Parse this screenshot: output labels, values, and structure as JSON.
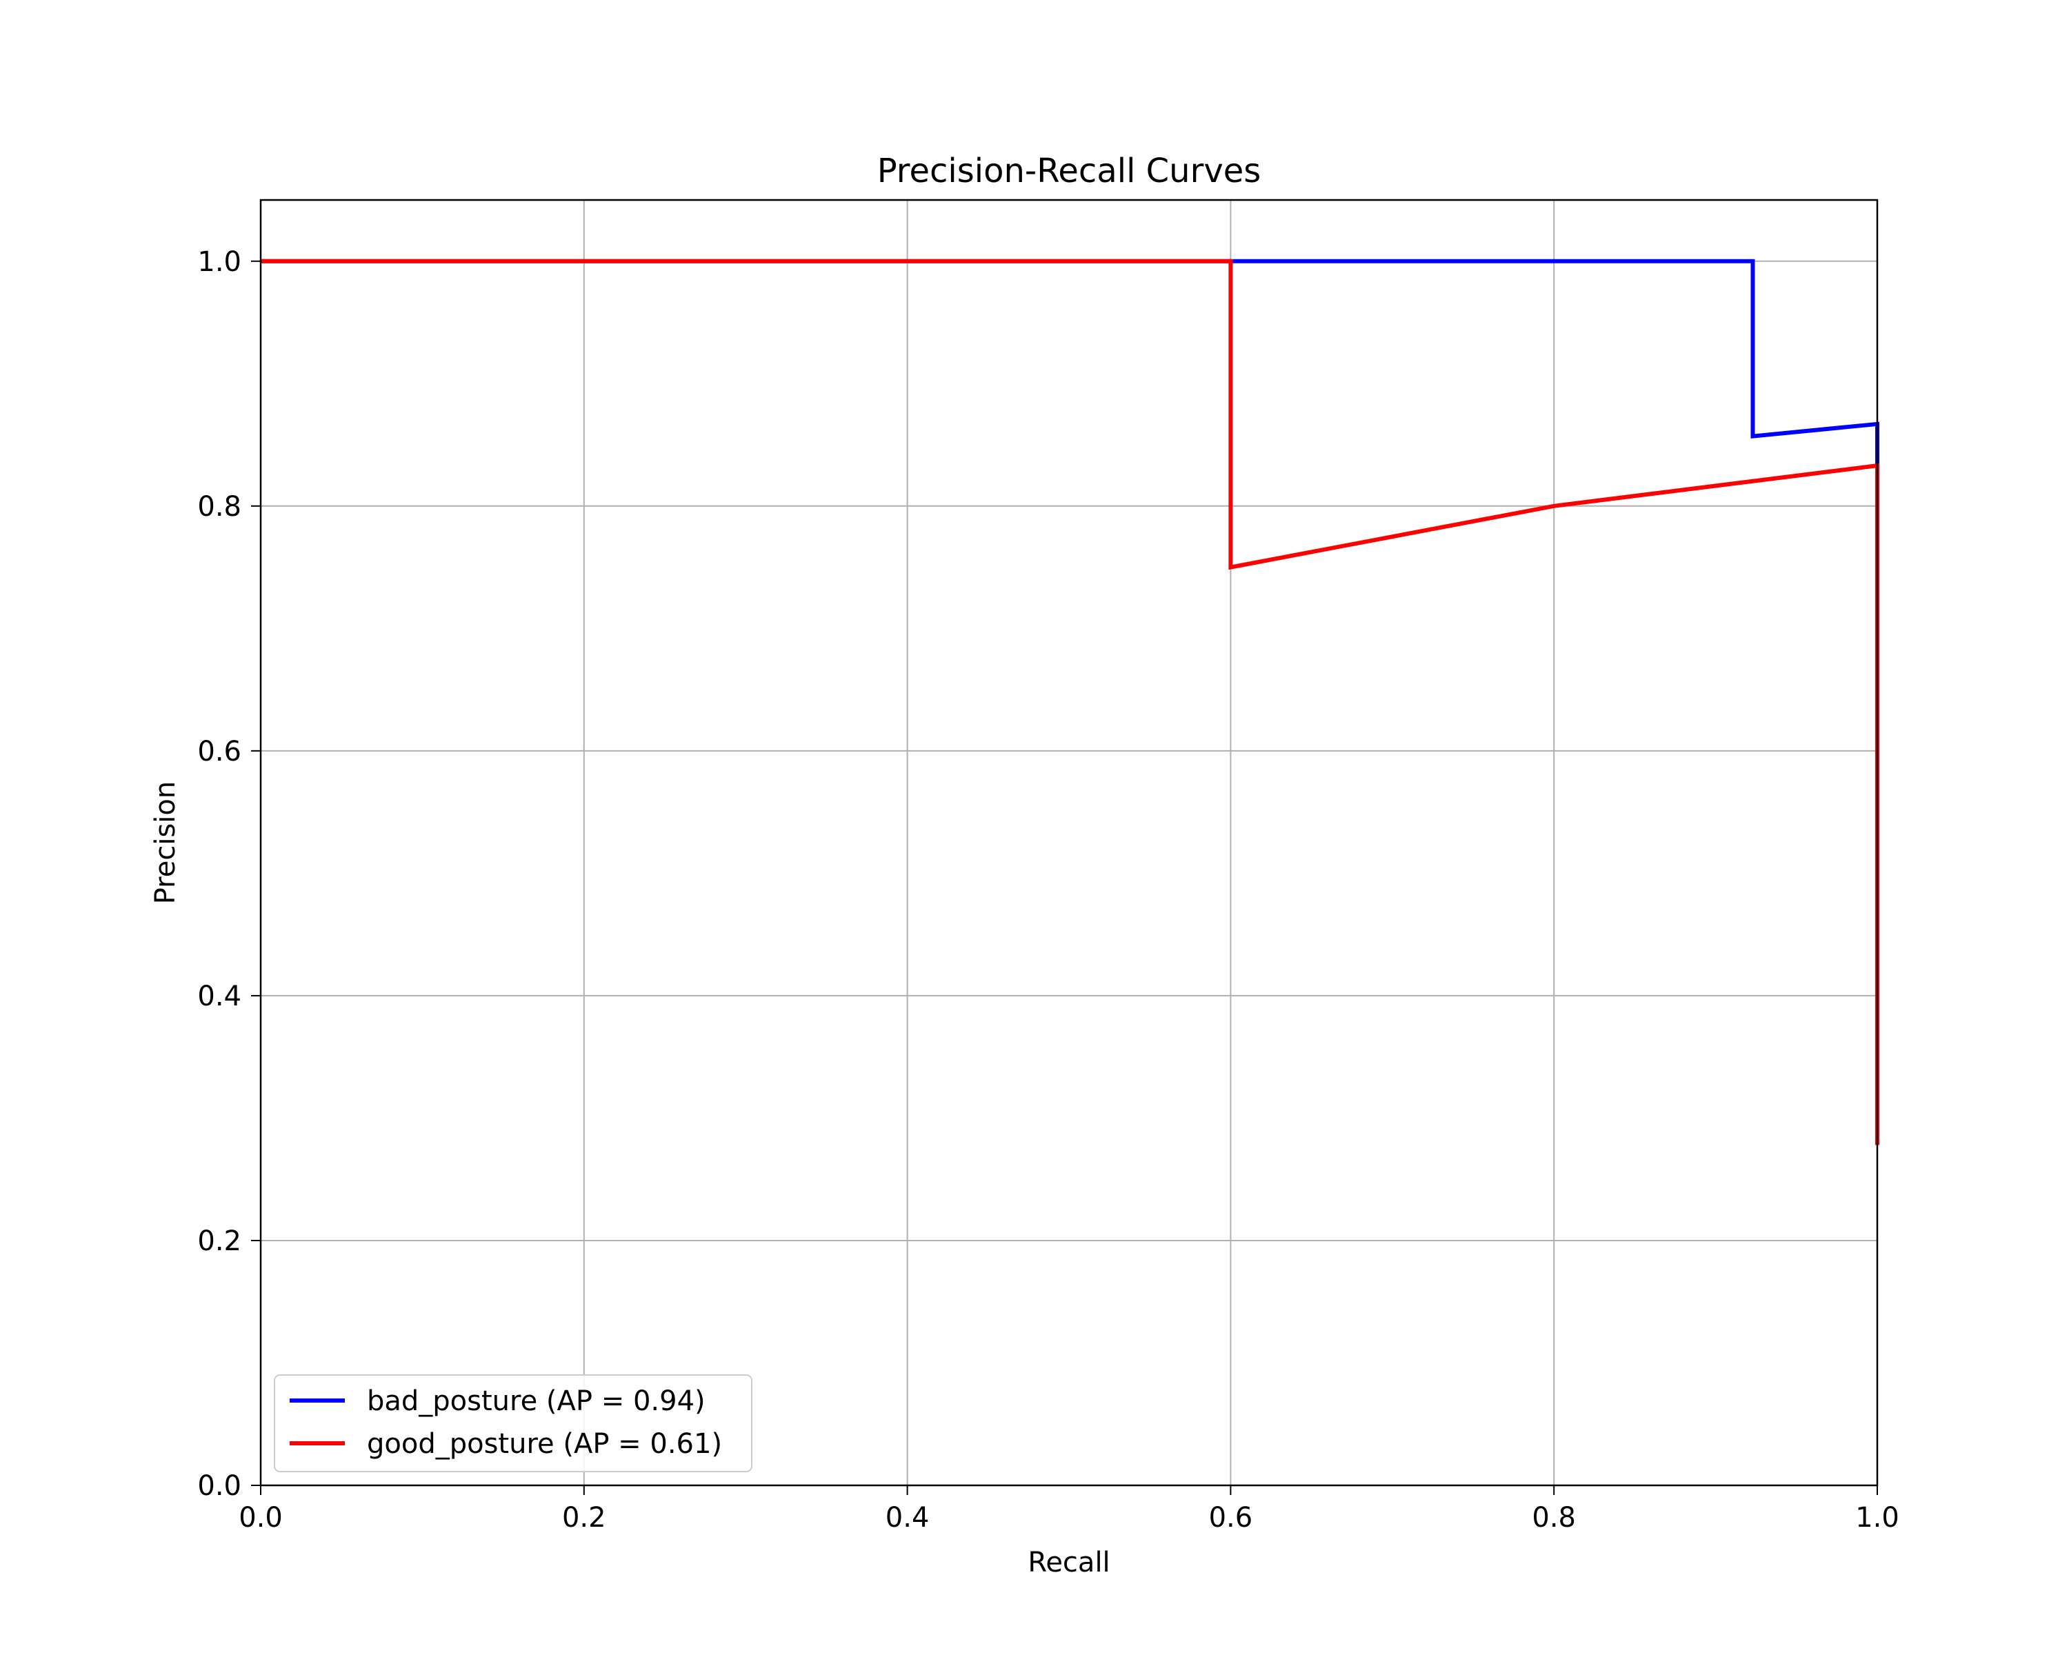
{
  "chart_data": {
    "type": "line",
    "title": "Precision-Recall Curves",
    "xlabel": "Recall",
    "ylabel": "Precision",
    "xlim": [
      0.0,
      1.0
    ],
    "ylim": [
      0.0,
      1.05
    ],
    "xticks": [
      "0.0",
      "0.2",
      "0.4",
      "0.6",
      "0.8",
      "1.0"
    ],
    "yticks": [
      "0.0",
      "0.2",
      "0.4",
      "0.6",
      "0.8",
      "1.0"
    ],
    "grid": true,
    "legend_position": "lower-left",
    "series": [
      {
        "name": "bad_posture (AP = 0.94)",
        "color": "#0000ff",
        "points": [
          [
            0.0,
            1.0
          ],
          [
            0.6,
            1.0
          ],
          [
            0.923,
            1.0
          ],
          [
            0.923,
            0.857
          ],
          [
            1.0,
            0.867
          ],
          [
            1.0,
            0.8
          ]
        ]
      },
      {
        "name": "good_posture (AP = 0.61)",
        "color": "#ff0000",
        "points": [
          [
            0.0,
            1.0
          ],
          [
            0.6,
            1.0
          ],
          [
            0.6,
            0.75
          ],
          [
            0.8,
            0.8
          ],
          [
            1.0,
            0.833
          ],
          [
            1.0,
            0.278
          ]
        ]
      }
    ]
  }
}
